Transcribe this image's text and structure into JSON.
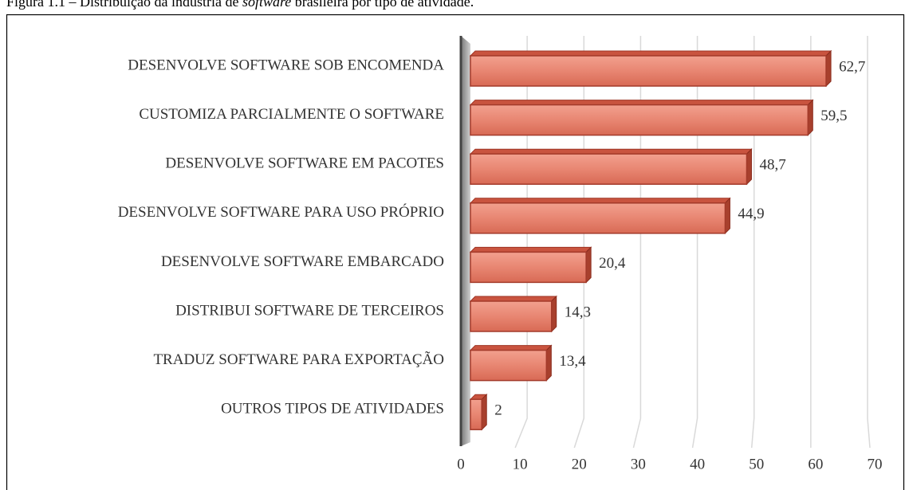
{
  "chart_data": {
    "type": "bar",
    "orientation": "horizontal",
    "title_parts": [
      "Figura 1.1 – Distribuição da indústria de ",
      "software",
      " brasileira por tipo de atividade."
    ],
    "categories": [
      "DESENVOLVE SOFTWARE SOB ENCOMENDA",
      "CUSTOMIZA PARCIALMENTE O SOFTWARE",
      "DESENVOLVE SOFTWARE EM PACOTES",
      "DESENVOLVE SOFTWARE PARA USO PRÓPRIO",
      "DESENVOLVE SOFTWARE EMBARCADO",
      "DISTRIBUI SOFTWARE DE TERCEIROS",
      "TRADUZ SOFTWARE PARA EXPORTAÇÃO",
      "OUTROS TIPOS DE ATIVIDADES"
    ],
    "values": [
      62.7,
      59.5,
      48.7,
      44.9,
      20.4,
      14.3,
      13.4,
      2
    ],
    "value_labels": [
      "62,7",
      "59,5",
      "48,7",
      "44,9",
      "20,4",
      "14,3",
      "13,4",
      "2"
    ],
    "color": "#e07a66",
    "xlim": [
      0,
      70
    ],
    "xticks": [
      0,
      10,
      20,
      30,
      40,
      50,
      60,
      70
    ],
    "grid": true
  }
}
